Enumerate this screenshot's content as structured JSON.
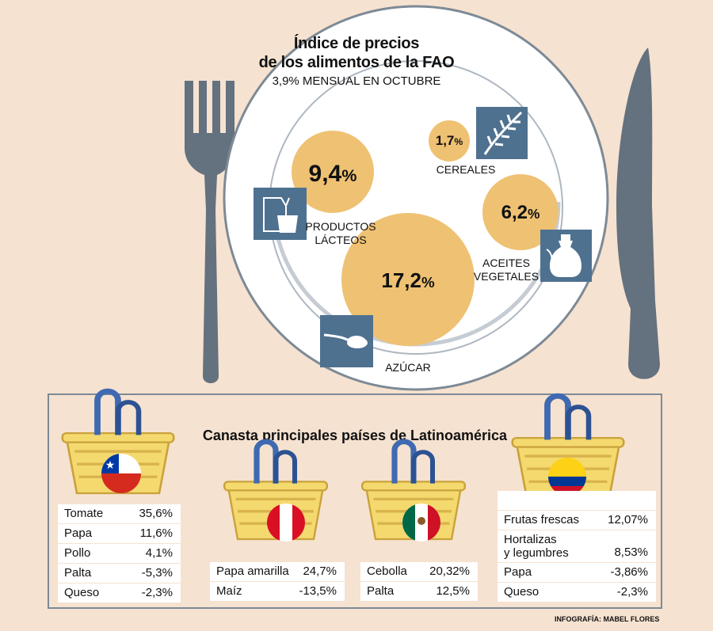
{
  "header": {
    "title_line1": "Índice de precios",
    "title_line2": "de los alimentos de la FAO",
    "subtitle": "3,9% MENSUAL EN OCTUBRE"
  },
  "plate_items": [
    {
      "category": "PRODUCTOS LÁCTEOS",
      "line1": "PRODUCTOS",
      "line2": "LÁCTEOS",
      "value": "9,4",
      "icon": "milk-carton-icon"
    },
    {
      "category": "CEREALES",
      "line1": "CEREALES",
      "line2": "",
      "value": "1,7",
      "icon": "wheat-icon"
    },
    {
      "category": "ACEITES VEGETALES",
      "line1": "ACEITES",
      "line2": "VEGETALES",
      "value": "6,2",
      "icon": "oil-bottle-icon"
    },
    {
      "category": "AZÚCAR",
      "line1": "AZÚCAR",
      "line2": "",
      "value": "17,2",
      "icon": "sugar-spoon-icon"
    }
  ],
  "unit": "%",
  "baskets": {
    "title": "Canasta principales países de Latinoamérica",
    "chile": {
      "flag": "chile-flag-icon",
      "rows": [
        {
          "item": "Tomate",
          "value": "35,6"
        },
        {
          "item": "Papa",
          "value": "11,6"
        },
        {
          "item": "Pollo",
          "value": "4,1"
        },
        {
          "item": "Palta",
          "value": "-5,3"
        },
        {
          "item": "Queso",
          "value": "-2,3"
        }
      ]
    },
    "peru": {
      "flag": "peru-flag-icon",
      "rows": [
        {
          "item": "Papa amarilla",
          "value": "24,7"
        },
        {
          "item": "Maíz",
          "value": "-13,5"
        }
      ]
    },
    "mexico": {
      "flag": "mexico-flag-icon",
      "rows": [
        {
          "item": "Cebolla",
          "value": "20,32"
        },
        {
          "item": "Palta",
          "value": "12,5"
        }
      ]
    },
    "colombia": {
      "flag": "colombia-flag-icon",
      "rows": [
        {
          "item": "Frutas frescas",
          "value": "12,07"
        },
        {
          "item_line1": "Hortalizas",
          "item_line2": "y legumbres",
          "value": "8,53"
        },
        {
          "item": "Papa",
          "value": "-3,86"
        },
        {
          "item": "Queso",
          "value": "-2,3"
        }
      ]
    }
  },
  "credit": "INFOGRAFÍA: MABEL FLORES",
  "colors": {
    "background": "#f6e2d0",
    "bubble": "#efc173",
    "icon_box": "#4f7190",
    "cutlery": "#64717f",
    "basket": "#f4d96e",
    "handle": "#3f6ab1"
  }
}
